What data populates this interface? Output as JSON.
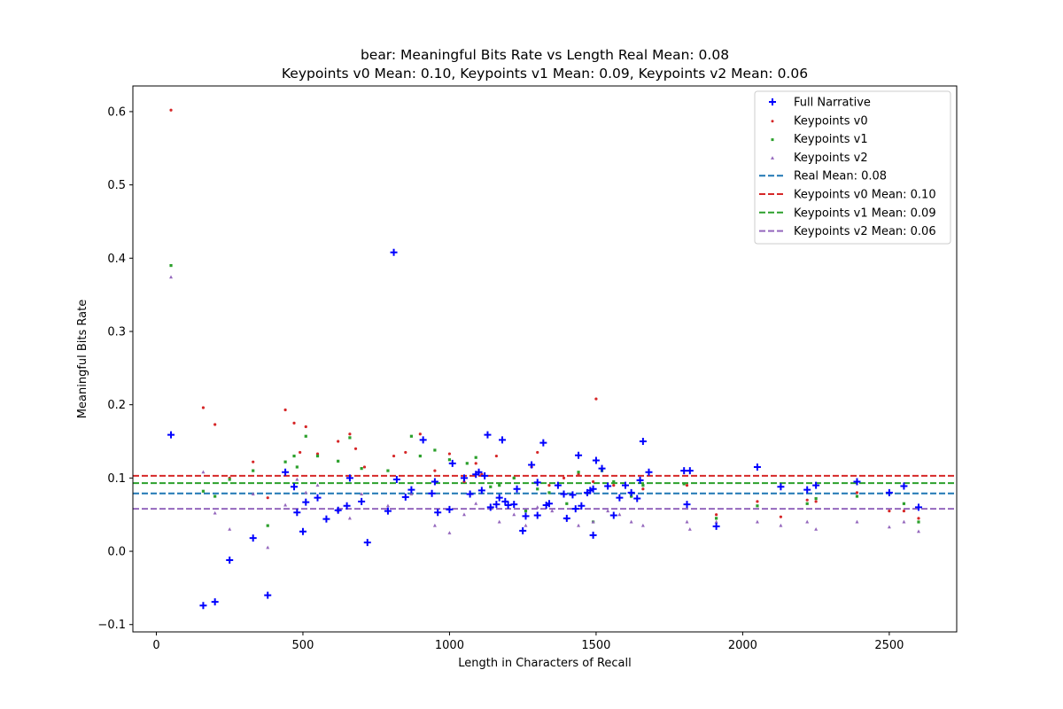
{
  "chart_data": {
    "type": "scatter",
    "title_line1": "bear: Meaningful Bits Rate vs Length Real Mean: 0.08",
    "title_line2": "Keypoints v0 Mean: 0.10, Keypoints v1 Mean: 0.09, Keypoints v2 Mean: 0.06",
    "xlabel": "Length in Characters of Recall",
    "ylabel": "Meaningful Bits Rate",
    "xlim": [
      -80,
      2730
    ],
    "ylim": [
      -0.11,
      0.635
    ],
    "xticks": [
      0,
      500,
      1000,
      1500,
      2000,
      2500
    ],
    "yticks": [
      -0.1,
      0.0,
      0.1,
      0.2,
      0.3,
      0.4,
      0.5,
      0.6
    ],
    "grid": false,
    "legend_position": "top-right",
    "series": [
      {
        "name": "Full Narrative",
        "marker": "plus",
        "color": "#0000ff",
        "points": [
          [
            50,
            0.159
          ],
          [
            160,
            -0.074
          ],
          [
            200,
            -0.069
          ],
          [
            250,
            -0.012
          ],
          [
            330,
            0.018
          ],
          [
            380,
            -0.06
          ],
          [
            440,
            0.108
          ],
          [
            470,
            0.088
          ],
          [
            480,
            0.053
          ],
          [
            500,
            0.027
          ],
          [
            510,
            0.067
          ],
          [
            550,
            0.073
          ],
          [
            580,
            0.044
          ],
          [
            620,
            0.056
          ],
          [
            650,
            0.062
          ],
          [
            660,
            0.1
          ],
          [
            700,
            0.068
          ],
          [
            720,
            0.012
          ],
          [
            790,
            0.055
          ],
          [
            810,
            0.408
          ],
          [
            820,
            0.098
          ],
          [
            850,
            0.074
          ],
          [
            870,
            0.084
          ],
          [
            910,
            0.152
          ],
          [
            940,
            0.079
          ],
          [
            950,
            0.095
          ],
          [
            960,
            0.053
          ],
          [
            1000,
            0.057
          ],
          [
            1010,
            0.12
          ],
          [
            1050,
            0.1
          ],
          [
            1070,
            0.078
          ],
          [
            1090,
            0.105
          ],
          [
            1100,
            0.108
          ],
          [
            1110,
            0.083
          ],
          [
            1120,
            0.103
          ],
          [
            1130,
            0.159
          ],
          [
            1140,
            0.06
          ],
          [
            1160,
            0.064
          ],
          [
            1170,
            0.073
          ],
          [
            1180,
            0.152
          ],
          [
            1190,
            0.068
          ],
          [
            1200,
            0.063
          ],
          [
            1220,
            0.064
          ],
          [
            1230,
            0.085
          ],
          [
            1250,
            0.028
          ],
          [
            1260,
            0.048
          ],
          [
            1280,
            0.118
          ],
          [
            1300,
            0.049
          ],
          [
            1300,
            0.094
          ],
          [
            1320,
            0.148
          ],
          [
            1330,
            0.063
          ],
          [
            1340,
            0.065
          ],
          [
            1370,
            0.09
          ],
          [
            1390,
            0.078
          ],
          [
            1400,
            0.045
          ],
          [
            1420,
            0.077
          ],
          [
            1430,
            0.058
          ],
          [
            1440,
            0.131
          ],
          [
            1450,
            0.062
          ],
          [
            1470,
            0.08
          ],
          [
            1480,
            0.083
          ],
          [
            1490,
            0.022
          ],
          [
            1490,
            0.085
          ],
          [
            1500,
            0.124
          ],
          [
            1520,
            0.113
          ],
          [
            1540,
            0.089
          ],
          [
            1560,
            0.049
          ],
          [
            1580,
            0.073
          ],
          [
            1600,
            0.09
          ],
          [
            1620,
            0.08
          ],
          [
            1640,
            0.072
          ],
          [
            1650,
            0.097
          ],
          [
            1660,
            0.15
          ],
          [
            1680,
            0.108
          ],
          [
            1800,
            0.11
          ],
          [
            1810,
            0.064
          ],
          [
            1820,
            0.11
          ],
          [
            1910,
            0.034
          ],
          [
            2050,
            0.115
          ],
          [
            2130,
            0.088
          ],
          [
            2220,
            0.084
          ],
          [
            2250,
            0.09
          ],
          [
            2390,
            0.095
          ],
          [
            2500,
            0.08
          ],
          [
            2550,
            0.089
          ],
          [
            2600,
            0.06
          ]
        ]
      },
      {
        "name": "Keypoints v0",
        "marker": "dot",
        "color": "#d62728",
        "points": [
          [
            50,
            0.602
          ],
          [
            160,
            0.196
          ],
          [
            200,
            0.173
          ],
          [
            250,
            0.1
          ],
          [
            330,
            0.122
          ],
          [
            380,
            0.073
          ],
          [
            440,
            0.193
          ],
          [
            470,
            0.175
          ],
          [
            490,
            0.135
          ],
          [
            510,
            0.17
          ],
          [
            550,
            0.133
          ],
          [
            620,
            0.15
          ],
          [
            660,
            0.16
          ],
          [
            680,
            0.14
          ],
          [
            710,
            0.115
          ],
          [
            810,
            0.13
          ],
          [
            850,
            0.135
          ],
          [
            900,
            0.16
          ],
          [
            950,
            0.11
          ],
          [
            1000,
            0.133
          ],
          [
            1050,
            0.095
          ],
          [
            1090,
            0.12
          ],
          [
            1110,
            0.105
          ],
          [
            1160,
            0.13
          ],
          [
            1220,
            0.1
          ],
          [
            1280,
            0.115
          ],
          [
            1300,
            0.135
          ],
          [
            1340,
            0.09
          ],
          [
            1390,
            0.1
          ],
          [
            1440,
            0.105
          ],
          [
            1490,
            0.095
          ],
          [
            1500,
            0.208
          ],
          [
            1560,
            0.09
          ],
          [
            1620,
            0.075
          ],
          [
            1660,
            0.085
          ],
          [
            1810,
            0.09
          ],
          [
            1910,
            0.05
          ],
          [
            2050,
            0.068
          ],
          [
            2130,
            0.047
          ],
          [
            2220,
            0.07
          ],
          [
            2250,
            0.068
          ],
          [
            2390,
            0.08
          ],
          [
            2500,
            0.055
          ],
          [
            2550,
            0.055
          ],
          [
            2600,
            0.045
          ]
        ]
      },
      {
        "name": "Keypoints v1",
        "marker": "square",
        "color": "#2ca02c",
        "points": [
          [
            50,
            0.39
          ],
          [
            160,
            0.082
          ],
          [
            200,
            0.075
          ],
          [
            250,
            0.098
          ],
          [
            330,
            0.11
          ],
          [
            380,
            0.035
          ],
          [
            440,
            0.122
          ],
          [
            470,
            0.13
          ],
          [
            480,
            0.115
          ],
          [
            510,
            0.157
          ],
          [
            550,
            0.13
          ],
          [
            620,
            0.123
          ],
          [
            660,
            0.155
          ],
          [
            700,
            0.113
          ],
          [
            790,
            0.11
          ],
          [
            870,
            0.157
          ],
          [
            900,
            0.13
          ],
          [
            950,
            0.138
          ],
          [
            1000,
            0.125
          ],
          [
            1060,
            0.12
          ],
          [
            1090,
            0.128
          ],
          [
            1140,
            0.088
          ],
          [
            1170,
            0.09
          ],
          [
            1220,
            0.1
          ],
          [
            1260,
            0.055
          ],
          [
            1300,
            0.085
          ],
          [
            1340,
            0.08
          ],
          [
            1400,
            0.065
          ],
          [
            1440,
            0.108
          ],
          [
            1490,
            0.04
          ],
          [
            1520,
            0.11
          ],
          [
            1560,
            0.095
          ],
          [
            1620,
            0.075
          ],
          [
            1660,
            0.09
          ],
          [
            1800,
            0.092
          ],
          [
            1910,
            0.045
          ],
          [
            2050,
            0.062
          ],
          [
            2220,
            0.065
          ],
          [
            2250,
            0.072
          ],
          [
            2390,
            0.075
          ],
          [
            2550,
            0.065
          ],
          [
            2600,
            0.04
          ]
        ]
      },
      {
        "name": "Keypoints v2",
        "marker": "triangle",
        "color": "#9467bd",
        "points": [
          [
            50,
            0.374
          ],
          [
            160,
            0.108
          ],
          [
            200,
            0.052
          ],
          [
            250,
            0.03
          ],
          [
            330,
            0.078
          ],
          [
            380,
            0.005
          ],
          [
            440,
            0.063
          ],
          [
            480,
            0.098
          ],
          [
            510,
            0.08
          ],
          [
            550,
            0.09
          ],
          [
            620,
            0.055
          ],
          [
            660,
            0.045
          ],
          [
            700,
            0.078
          ],
          [
            790,
            0.062
          ],
          [
            870,
            0.078
          ],
          [
            950,
            0.035
          ],
          [
            1000,
            0.025
          ],
          [
            1050,
            0.05
          ],
          [
            1090,
            0.065
          ],
          [
            1140,
            0.06
          ],
          [
            1170,
            0.04
          ],
          [
            1220,
            0.05
          ],
          [
            1260,
            0.035
          ],
          [
            1300,
            0.06
          ],
          [
            1350,
            0.055
          ],
          [
            1400,
            0.045
          ],
          [
            1440,
            0.035
          ],
          [
            1490,
            0.04
          ],
          [
            1540,
            0.055
          ],
          [
            1580,
            0.05
          ],
          [
            1620,
            0.04
          ],
          [
            1660,
            0.035
          ],
          [
            1810,
            0.04
          ],
          [
            1820,
            0.03
          ],
          [
            1910,
            0.04
          ],
          [
            2050,
            0.04
          ],
          [
            2130,
            0.035
          ],
          [
            2220,
            0.04
          ],
          [
            2250,
            0.03
          ],
          [
            2390,
            0.04
          ],
          [
            2500,
            0.033
          ],
          [
            2550,
            0.04
          ],
          [
            2600,
            0.027
          ]
        ]
      }
    ],
    "mean_lines": [
      {
        "name": "Real Mean: 0.08",
        "value": 0.079,
        "color": "#1f77b4"
      },
      {
        "name": "Keypoints v0 Mean: 0.10",
        "value": 0.103,
        "color": "#d62728"
      },
      {
        "name": "Keypoints v1 Mean: 0.09",
        "value": 0.093,
        "color": "#2ca02c"
      },
      {
        "name": "Keypoints v2 Mean: 0.06",
        "value": 0.058,
        "color": "#9467bd"
      }
    ]
  }
}
